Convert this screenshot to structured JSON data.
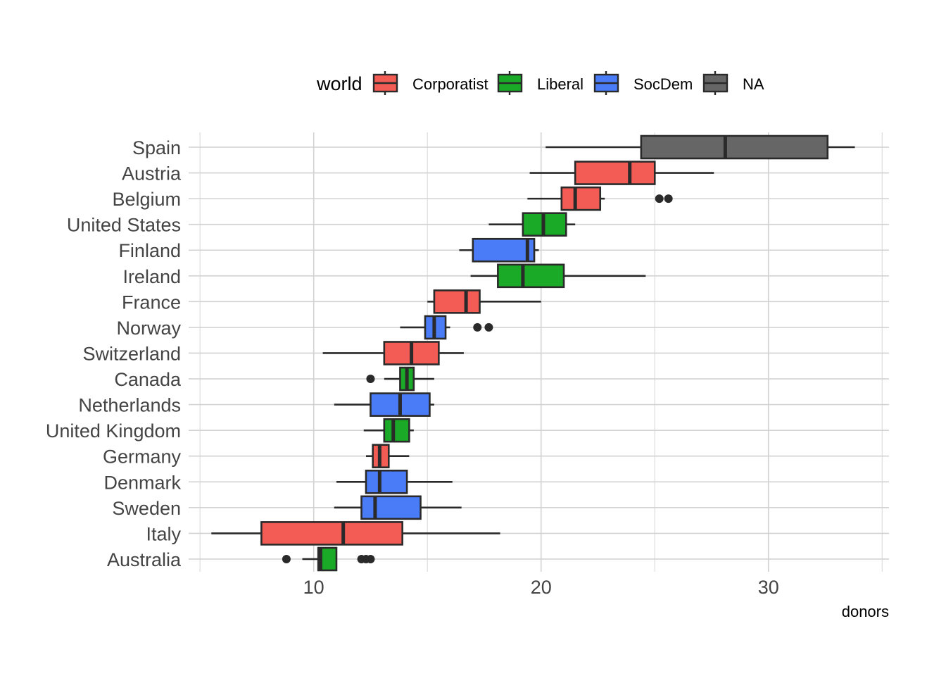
{
  "chart_data": {
    "type": "boxplot",
    "orientation": "horizontal",
    "xlabel": "donors",
    "ylabel": "",
    "xlim": [
      4.5,
      35.3
    ],
    "x_ticks": [
      10,
      20,
      30
    ],
    "grid": true,
    "legend": {
      "title": "world",
      "placement": "top",
      "entries": [
        {
          "name": "Corporatist",
          "color": "#F8766D"
        },
        {
          "name": "Liberal",
          "color": "#00BA38"
        },
        {
          "name": "SocDem",
          "color": "#619CFF"
        },
        {
          "name": "NA",
          "color": "#7F7F7F"
        }
      ]
    },
    "colors": {
      "Corporatist": "#F25C54",
      "Liberal": "#1BAA28",
      "SocDem": "#4A7CF7",
      "NA": "#666666"
    },
    "categories": [
      "Spain",
      "Austria",
      "Belgium",
      "United States",
      "Finland",
      "Ireland",
      "France",
      "Norway",
      "Switzerland",
      "Canada",
      "Netherlands",
      "United Kingdom",
      "Germany",
      "Denmark",
      "Sweden",
      "Italy",
      "Australia"
    ],
    "boxes": [
      {
        "country": "Spain",
        "world": "NA",
        "whisker_low": 20.2,
        "q1": 24.4,
        "median": 28.1,
        "q3": 32.6,
        "whisker_high": 33.8,
        "outliers": []
      },
      {
        "country": "Austria",
        "world": "Corporatist",
        "whisker_low": 19.5,
        "q1": 21.5,
        "median": 23.9,
        "q3": 25.0,
        "whisker_high": 27.6,
        "outliers": []
      },
      {
        "country": "Belgium",
        "world": "Corporatist",
        "whisker_low": 19.4,
        "q1": 20.9,
        "median": 21.5,
        "q3": 22.6,
        "whisker_high": 22.8,
        "outliers": [
          25.2,
          25.6
        ]
      },
      {
        "country": "United States",
        "world": "Liberal",
        "whisker_low": 17.7,
        "q1": 19.2,
        "median": 20.1,
        "q3": 21.1,
        "whisker_high": 21.5,
        "outliers": []
      },
      {
        "country": "Finland",
        "world": "SocDem",
        "whisker_low": 16.4,
        "q1": 17.0,
        "median": 19.4,
        "q3": 19.7,
        "whisker_high": 19.9,
        "outliers": []
      },
      {
        "country": "Ireland",
        "world": "Liberal",
        "whisker_low": 16.9,
        "q1": 18.1,
        "median": 19.2,
        "q3": 21.0,
        "whisker_high": 24.6,
        "outliers": []
      },
      {
        "country": "France",
        "world": "Corporatist",
        "whisker_low": 15.0,
        "q1": 15.3,
        "median": 16.7,
        "q3": 17.3,
        "whisker_high": 20.0,
        "outliers": []
      },
      {
        "country": "Norway",
        "world": "SocDem",
        "whisker_low": 13.8,
        "q1": 14.9,
        "median": 15.3,
        "q3": 15.8,
        "whisker_high": 16.0,
        "outliers": [
          17.2,
          17.7
        ]
      },
      {
        "country": "Switzerland",
        "world": "Corporatist",
        "whisker_low": 10.4,
        "q1": 13.1,
        "median": 14.3,
        "q3": 15.5,
        "whisker_high": 16.6,
        "outliers": []
      },
      {
        "country": "Canada",
        "world": "Liberal",
        "whisker_low": 13.1,
        "q1": 13.8,
        "median": 14.1,
        "q3": 14.4,
        "whisker_high": 15.3,
        "outliers": [
          12.5
        ]
      },
      {
        "country": "Netherlands",
        "world": "SocDem",
        "whisker_low": 10.9,
        "q1": 12.5,
        "median": 13.8,
        "q3": 15.1,
        "whisker_high": 15.3,
        "outliers": []
      },
      {
        "country": "United Kingdom",
        "world": "Liberal",
        "whisker_low": 12.2,
        "q1": 13.1,
        "median": 13.5,
        "q3": 14.2,
        "whisker_high": 14.4,
        "outliers": []
      },
      {
        "country": "Germany",
        "world": "Corporatist",
        "whisker_low": 12.3,
        "q1": 12.6,
        "median": 12.9,
        "q3": 13.3,
        "whisker_high": 14.2,
        "outliers": []
      },
      {
        "country": "Denmark",
        "world": "SocDem",
        "whisker_low": 11.0,
        "q1": 12.3,
        "median": 12.9,
        "q3": 14.1,
        "whisker_high": 16.1,
        "outliers": []
      },
      {
        "country": "Sweden",
        "world": "SocDem",
        "whisker_low": 10.9,
        "q1": 12.1,
        "median": 12.7,
        "q3": 14.7,
        "whisker_high": 16.5,
        "outliers": []
      },
      {
        "country": "Italy",
        "world": "Corporatist",
        "whisker_low": 5.5,
        "q1": 7.7,
        "median": 11.3,
        "q3": 13.9,
        "whisker_high": 18.2,
        "outliers": []
      },
      {
        "country": "Australia",
        "world": "Liberal",
        "whisker_low": 9.5,
        "q1": 10.2,
        "median": 10.3,
        "q3": 11.0,
        "whisker_high": 11.0,
        "outliers": [
          8.8,
          12.1,
          12.3,
          12.5
        ]
      }
    ]
  }
}
